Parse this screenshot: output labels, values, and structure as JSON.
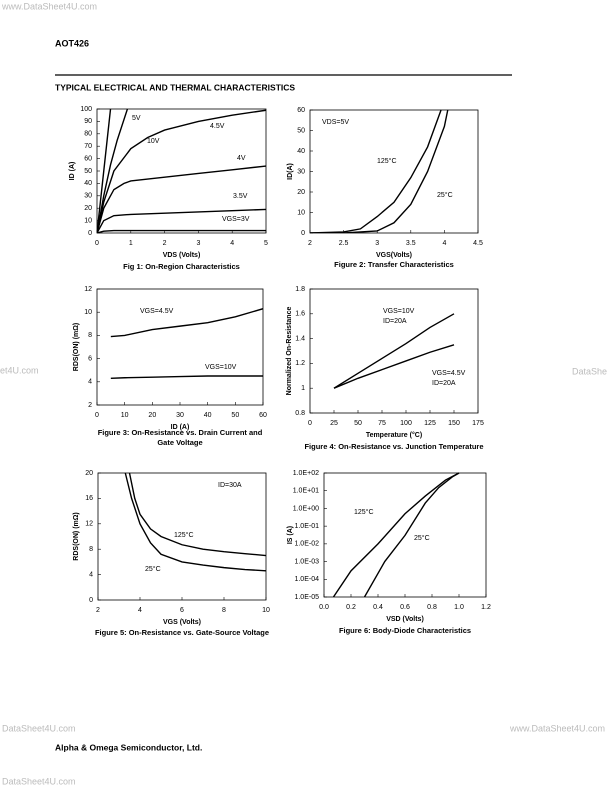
{
  "header": "AOT426",
  "section_title": "TYPICAL ELECTRICAL AND THERMAL CHARACTERISTICS",
  "footer": "Alpha & Omega Semiconductor, Ltd.",
  "watermarks": [
    "www.DataSheet4U.com",
    "et4U.com",
    "DataShe",
    "DataSheet4U.com",
    "www.DataSheet4U.com",
    "DataSheet4U.com"
  ],
  "chart_data": [
    {
      "type": "line",
      "caption": [
        "Fig 1: On-Region Characteristics"
      ],
      "xlabel": "VDS (Volts)",
      "ylabel": "ID (A)",
      "xlim": [
        0,
        5
      ],
      "ylim": [
        0,
        100
      ],
      "xticks": [
        0,
        1,
        2,
        3,
        4,
        5
      ],
      "yticks": [
        0,
        10,
        20,
        30,
        40,
        50,
        60,
        70,
        80,
        90,
        100
      ],
      "annotations": [],
      "color": "#000000",
      "series": [
        {
          "name": "10V",
          "x": [
            0,
            0.1,
            0.2,
            0.3,
            0.4
          ],
          "values": [
            0,
            25,
            50,
            75,
            100
          ]
        },
        {
          "name": "5V",
          "x": [
            0,
            0.2,
            0.4,
            0.6,
            0.9
          ],
          "values": [
            0,
            30,
            55,
            75,
            100
          ]
        },
        {
          "name": "4.5V",
          "x": [
            0,
            0.2,
            0.5,
            1,
            1.5,
            2,
            3,
            4,
            5
          ],
          "values": [
            0,
            25,
            50,
            68,
            77,
            83,
            90,
            95,
            99
          ]
        },
        {
          "name": "4V",
          "x": [
            0,
            0.2,
            0.5,
            0.8,
            1,
            2,
            3,
            4,
            5
          ],
          "values": [
            0,
            20,
            35,
            40,
            42,
            45,
            48,
            51,
            54
          ]
        },
        {
          "name": "3.5V",
          "x": [
            0,
            0.2,
            0.5,
            1,
            2,
            3,
            4,
            5
          ],
          "values": [
            0,
            10,
            14,
            15,
            16,
            17,
            18,
            19
          ]
        },
        {
          "name": "VGS=3V",
          "x": [
            0,
            0.2,
            0.5,
            1,
            2,
            5
          ],
          "values": [
            0,
            1.5,
            2,
            2,
            2,
            2
          ]
        }
      ]
    },
    {
      "type": "line",
      "caption": [
        "Figure 2: Transfer Characteristics"
      ],
      "xlabel": "VGS(Volts)",
      "ylabel": "ID(A)",
      "xlim": [
        2,
        4.5
      ],
      "ylim": [
        0,
        60
      ],
      "xticks": [
        2,
        2.5,
        3,
        3.5,
        4,
        4.5
      ],
      "yticks": [
        0,
        10,
        20,
        30,
        40,
        50,
        60
      ],
      "annotations": [
        "VDS=5V"
      ],
      "color": "#000000",
      "series": [
        {
          "name": "125°C",
          "x": [
            2,
            2.5,
            2.75,
            3,
            3.25,
            3.5,
            3.75,
            3.95
          ],
          "values": [
            0,
            0.5,
            2,
            8,
            15,
            27,
            42,
            60
          ]
        },
        {
          "name": "25°C",
          "x": [
            2,
            2.5,
            3,
            3.25,
            3.5,
            3.75,
            4,
            4.05
          ],
          "values": [
            0,
            0,
            1,
            5,
            14,
            30,
            52,
            60
          ]
        }
      ]
    },
    {
      "type": "line",
      "caption": [
        "Figure 3: On-Resistance vs. Drain Current and",
        "Gate Voltage"
      ],
      "xlabel": "ID (A)",
      "ylabel": "RDS(ON) (mΩ)",
      "xlim": [
        0,
        60
      ],
      "ylim": [
        2,
        12
      ],
      "xticks": [
        0,
        10,
        20,
        30,
        40,
        50,
        60
      ],
      "yticks": [
        2,
        4,
        6,
        8,
        10,
        12
      ],
      "annotations": [],
      "color": "#000000",
      "series": [
        {
          "name": "VGS=4.5V",
          "x": [
            5,
            10,
            20,
            30,
            40,
            50,
            60
          ],
          "values": [
            7.9,
            8,
            8.5,
            8.8,
            9.1,
            9.6,
            10.3
          ]
        },
        {
          "name": "VGS=10V",
          "x": [
            5,
            10,
            20,
            30,
            40,
            50,
            60
          ],
          "values": [
            4.3,
            4.35,
            4.4,
            4.45,
            4.5,
            4.5,
            4.5
          ]
        }
      ]
    },
    {
      "type": "line",
      "caption": [
        "Figure 4: On-Resistance vs. Junction Temperature"
      ],
      "xlabel": "Temperature (°C)",
      "ylabel": "Normalized On-Resistance",
      "xlim": [
        0,
        175
      ],
      "ylim": [
        0.8,
        1.8
      ],
      "xticks": [
        0,
        25,
        50,
        75,
        100,
        125,
        150,
        175
      ],
      "yticks": [
        0.8,
        1,
        1.2,
        1.4,
        1.6,
        1.8
      ],
      "annotations": [
        "ID=20A",
        "ID=20A"
      ],
      "color": "#000000",
      "series": [
        {
          "name": "VGS=10V",
          "x": [
            25,
            50,
            75,
            100,
            125,
            150
          ],
          "values": [
            1,
            1.12,
            1.24,
            1.36,
            1.49,
            1.6
          ]
        },
        {
          "name": "VGS=4.5V",
          "x": [
            25,
            50,
            75,
            100,
            125,
            150
          ],
          "values": [
            1,
            1.08,
            1.15,
            1.22,
            1.29,
            1.35
          ]
        }
      ]
    },
    {
      "type": "line",
      "caption": [
        "Figure 5: On-Resistance vs. Gate-Source Voltage"
      ],
      "xlabel": "VGS (Volts)",
      "ylabel": "RDS(ON) (mΩ)",
      "xlim": [
        2,
        10
      ],
      "ylim": [
        0,
        20
      ],
      "xticks": [
        2,
        4,
        6,
        8,
        10
      ],
      "yticks": [
        0,
        4,
        8,
        12,
        16,
        20
      ],
      "annotations": [
        "ID=30A"
      ],
      "color": "#000000",
      "series": [
        {
          "name": "125°C",
          "x": [
            3.5,
            3.75,
            4,
            4.5,
            5,
            6,
            7,
            8,
            9,
            10
          ],
          "values": [
            20,
            16,
            13.5,
            11.2,
            10,
            8.7,
            8,
            7.6,
            7.3,
            7
          ]
        },
        {
          "name": "25°C",
          "x": [
            3.3,
            3.6,
            4,
            4.5,
            5,
            6,
            7,
            8,
            9,
            10
          ],
          "values": [
            20,
            16,
            12,
            9,
            7.2,
            6,
            5.5,
            5.1,
            4.8,
            4.6
          ]
        }
      ]
    },
    {
      "type": "line",
      "caption": [
        "Figure 6: Body-Diode Characteristics"
      ],
      "xlabel": "VSD (Volts)",
      "ylabel": "IS (A)",
      "xlim": [
        0,
        1.2
      ],
      "ylim": [
        1e-05,
        100
      ],
      "log_y": true,
      "xticks": [
        {
          "value": 0,
          "label": "0.0"
        },
        0.2,
        0.4,
        0.6,
        0.8,
        {
          "value": 1,
          "label": "1.0"
        },
        1.2
      ],
      "yticks": [
        {
          "value": 1e-05,
          "label": "1.0E-05"
        },
        {
          "value": 0.0001,
          "label": "1.0E-04"
        },
        {
          "value": 0.001,
          "label": "1.0E-03"
        },
        {
          "value": 0.01,
          "label": "1.0E-02"
        },
        {
          "value": 0.1,
          "label": "1.0E-01"
        },
        {
          "value": 1,
          "label": "1.0E+00"
        },
        {
          "value": 10,
          "label": "1.0E+01"
        },
        {
          "value": 100,
          "label": "1.0E+02"
        }
      ],
      "annotations": [],
      "color": "#000000",
      "series": [
        {
          "name": "125°C",
          "x": [
            0.07,
            0.2,
            0.4,
            0.6,
            0.75,
            0.9,
            1
          ],
          "values": [
            1e-05,
            0.0003,
            0.01,
            0.5,
            5,
            40,
            100
          ]
        },
        {
          "name": "25°C",
          "x": [
            0.3,
            0.45,
            0.6,
            0.75,
            0.85,
            0.95,
            1
          ],
          "values": [
            1e-05,
            0.001,
            0.03,
            2,
            15,
            60,
            100
          ]
        }
      ]
    }
  ]
}
